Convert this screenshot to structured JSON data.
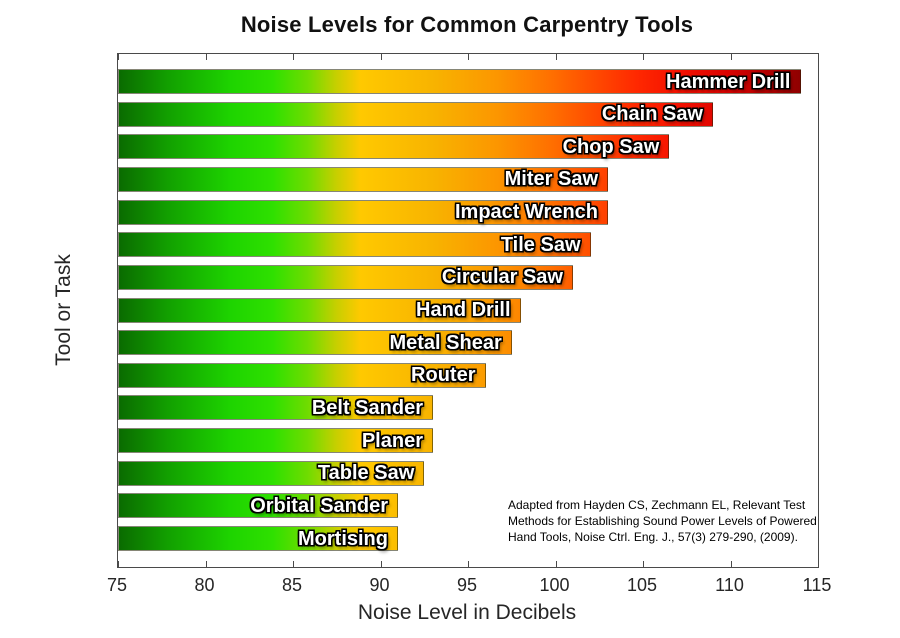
{
  "figure": {
    "annotation": "Adapted from Hayden CS, Zechmann EL, Relevant Test\nMethods for Establishing Sound Power Levels of Powered\nHand Tools, Noise Ctrl. Eng. J., 57(3) 279-290, (2009)."
  },
  "chart_data": {
    "type": "bar",
    "orientation": "horizontal",
    "title": "Noise Levels for Common Carpentry Tools",
    "xlabel": "Noise Level in Decibels",
    "ylabel": "Tool or Task",
    "xlim": [
      75,
      115
    ],
    "x_ticks": [
      75,
      80,
      85,
      90,
      95,
      100,
      105,
      110,
      115
    ],
    "grid": false,
    "legend": "none",
    "categories": [
      "Hammer Drill",
      "Chain Saw",
      "Chop Saw",
      "Miter Saw",
      "Impact Wrench",
      "Tile Saw",
      "Circular Saw",
      "Hand Drill",
      "Metal Shear",
      "Router",
      "Belt Sander",
      "Planer",
      "Table Saw",
      "Orbital Sander",
      "Mortising"
    ],
    "values": [
      114,
      109,
      106.5,
      103,
      103,
      102,
      101,
      98,
      97.5,
      96,
      93,
      93,
      92.5,
      91,
      91
    ],
    "bar_label_color": "#ffffff",
    "bar_label_outline_color": "#000000",
    "axis_color": "#4a4a4a",
    "colormap_stops": [
      {
        "pos": 0.0,
        "color": "#0a6b00"
      },
      {
        "pos": 0.07,
        "color": "#12a000"
      },
      {
        "pos": 0.16,
        "color": "#1ed400"
      },
      {
        "pos": 0.22,
        "color": "#2fe000"
      },
      {
        "pos": 0.27,
        "color": "#70dc00"
      },
      {
        "pos": 0.31,
        "color": "#c6cf00"
      },
      {
        "pos": 0.345,
        "color": "#ffc900"
      },
      {
        "pos": 0.45,
        "color": "#f8b300"
      },
      {
        "pos": 0.54,
        "color": "#fc9600"
      },
      {
        "pos": 0.62,
        "color": "#ff6e00"
      },
      {
        "pos": 0.68,
        "color": "#ff4a00"
      },
      {
        "pos": 0.74,
        "color": "#ff2800"
      },
      {
        "pos": 0.8,
        "color": "#f41100"
      },
      {
        "pos": 0.87,
        "color": "#d90200"
      },
      {
        "pos": 0.93,
        "color": "#ad0000"
      },
      {
        "pos": 1.0,
        "color": "#7c0000"
      }
    ]
  }
}
